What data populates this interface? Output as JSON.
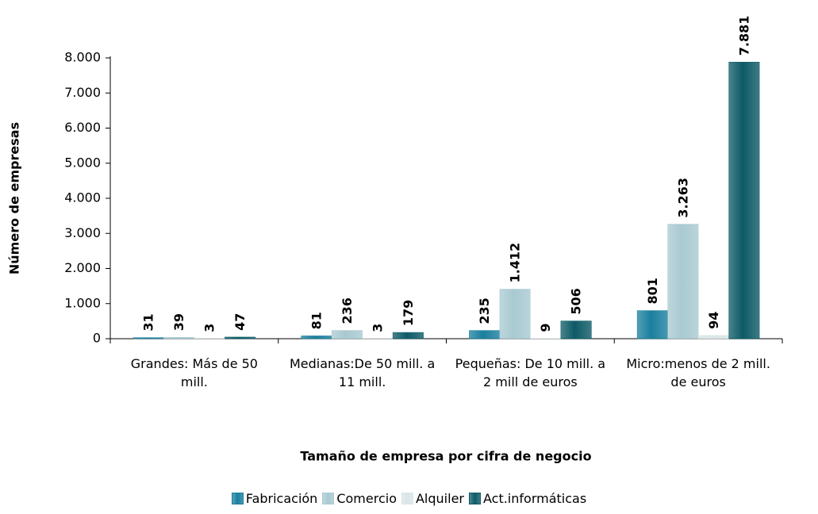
{
  "chart_data": {
    "type": "bar",
    "y_label": "Número de empresas",
    "x_label": "Tamaño de empresa por cifra de negocio",
    "categories": [
      "Grandes: Más de 50 mill.",
      "Medianas:De 50 mill. a 11 mill.",
      "Pequeñas: De 10 mill. a 2 mill de euros",
      "Micro:menos de 2 mill. de euros"
    ],
    "series": [
      {
        "name": "Fabricación",
        "color": "#1a7f9e",
        "values": [
          31,
          81,
          235,
          801
        ],
        "value_labels": [
          "31",
          "81",
          "235",
          "801"
        ]
      },
      {
        "name": "Comercio",
        "color": "#a9c9d1",
        "values": [
          39,
          236,
          1412,
          3263
        ],
        "value_labels": [
          "39",
          "236",
          "1.412",
          "3.263"
        ]
      },
      {
        "name": "Alquiler",
        "color": "#d9e5e8",
        "values": [
          3,
          3,
          9,
          94
        ],
        "value_labels": [
          "3",
          "3",
          "9",
          "94"
        ]
      },
      {
        "name": "Act.informáticas",
        "color": "#0d5a66",
        "values": [
          47,
          179,
          506,
          7881
        ],
        "value_labels": [
          "47",
          "179",
          "506",
          "7.881"
        ]
      }
    ],
    "ylim": [
      0,
      8000
    ],
    "yticks": [
      0,
      {
        "value": 1000,
        "label": "1.000"
      },
      {
        "value": 2000,
        "label": "2.000"
      },
      {
        "value": 3000,
        "label": "3.000"
      },
      {
        "value": 4000,
        "label": "4.000"
      },
      {
        "value": 5000,
        "label": "5.000"
      },
      {
        "value": 6000,
        "label": "6.000"
      },
      {
        "value": 7000,
        "label": "7.000"
      },
      {
        "value": 8000,
        "label": "8.000"
      }
    ],
    "legend": "bottom"
  }
}
